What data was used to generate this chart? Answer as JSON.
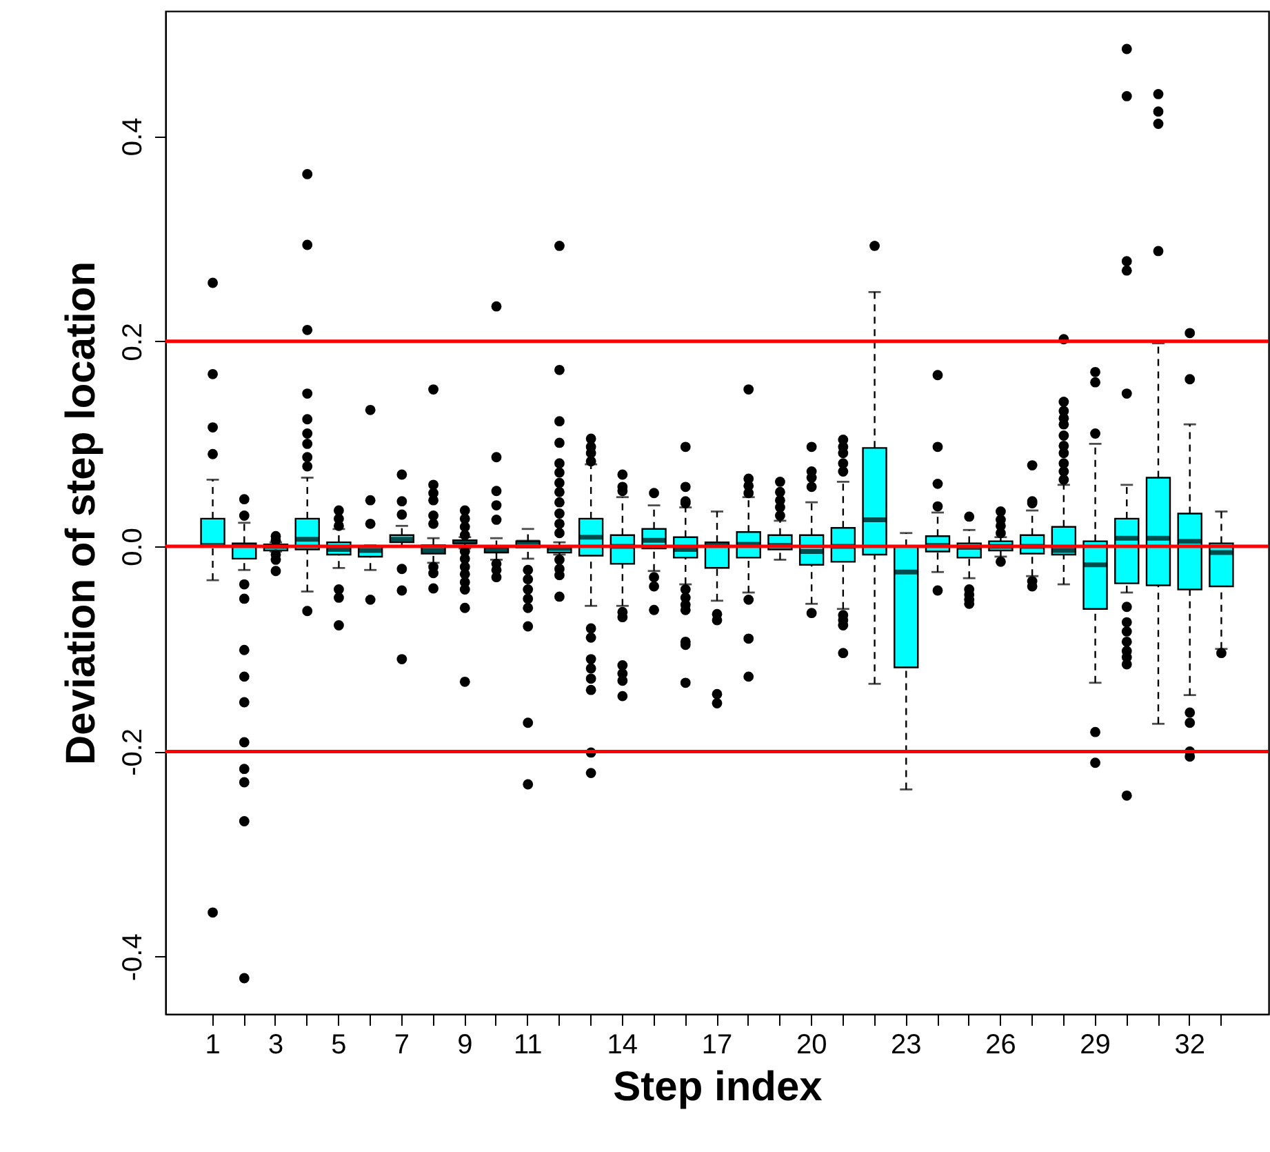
{
  "chart_data": {
    "type": "box",
    "xlabel": "Step index",
    "ylabel": "Deviation of step location",
    "categories": [
      "1",
      null,
      "3",
      null,
      "5",
      null,
      "7",
      null,
      "9",
      null,
      "11",
      null,
      null,
      "14",
      null,
      null,
      "17",
      null,
      null,
      "20",
      null,
      null,
      "23",
      null,
      null,
      "26",
      null,
      null,
      "29",
      null,
      null,
      "32",
      null
    ],
    "ylim": [
      -0.456,
      0.522
    ],
    "yticks": [
      -0.4,
      -0.2,
      {
        "value": 0,
        "label": "0.0"
      },
      0.2,
      0.4
    ],
    "grid": false,
    "marker": "circle",
    "ref_lines": [
      {
        "axis": "y",
        "value": 0.2,
        "color": "#ff0000"
      },
      {
        "axis": "y",
        "value": 0.0,
        "color": "#ff0000"
      },
      {
        "axis": "y",
        "value": -0.2,
        "color": "#ff0000"
      }
    ],
    "series": [
      {
        "color": "#00ffff",
        "boxes": [
          {
            "low": -0.033,
            "q1": 0.0,
            "median": 0.001,
            "q3": 0.027,
            "high": 0.065,
            "outliers": [
              0.257,
              0.168,
              0.116,
              0.09,
              -0.357
            ]
          },
          {
            "low": -0.023,
            "q1": -0.012,
            "median": 0.001,
            "q3": 0.003,
            "high": 0.023,
            "outliers": [
              0.046,
              0.03,
              -0.037,
              -0.051,
              -0.101,
              -0.127,
              -0.152,
              -0.191,
              -0.217,
              -0.23,
              -0.268,
              -0.421
            ]
          },
          {
            "low": -0.005,
            "q1": -0.004,
            "median": 0.0,
            "q3": 0.002,
            "high": 0.004,
            "outliers": [
              0.01,
              0.006,
              -0.008,
              -0.013,
              -0.024
            ]
          },
          {
            "low": -0.044,
            "q1": -0.003,
            "median": 0.007,
            "q3": 0.027,
            "high": 0.067,
            "outliers": [
              0.363,
              0.294,
              0.211,
              0.149,
              0.124,
              0.11,
              0.1,
              0.087,
              0.078,
              -0.063
            ]
          },
          {
            "low": -0.021,
            "q1": -0.008,
            "median": -0.003,
            "q3": 0.004,
            "high": 0.017,
            "outliers": [
              0.035,
              0.027,
              0.02,
              -0.042,
              -0.05,
              -0.077
            ]
          },
          {
            "low": -0.023,
            "q1": -0.01,
            "median": -0.004,
            "q3": 0.0,
            "high": 0.001,
            "outliers": [
              0.133,
              0.045,
              0.022,
              -0.052
            ]
          },
          {
            "low": 0.0,
            "q1": 0.004,
            "median": 0.007,
            "q3": 0.011,
            "high": 0.02,
            "outliers": [
              0.07,
              0.044,
              0.031,
              -0.022,
              -0.043,
              -0.11
            ]
          },
          {
            "low": -0.016,
            "q1": -0.007,
            "median": -0.004,
            "q3": 0.001,
            "high": 0.008,
            "outliers": [
              0.153,
              0.06,
              0.052,
              0.045,
              0.03,
              0.022,
              -0.02,
              -0.026,
              -0.041
            ]
          },
          {
            "low": -0.002,
            "q1": 0.003,
            "median": 0.004,
            "q3": 0.006,
            "high": 0.009,
            "outliers": [
              0.035,
              0.027,
              0.019,
              0.011,
              -0.005,
              -0.012,
              -0.02,
              -0.027,
              -0.035,
              -0.042,
              -0.06,
              -0.132
            ]
          },
          {
            "low": -0.013,
            "q1": -0.006,
            "median": -0.003,
            "q3": -0.001,
            "high": 0.008,
            "outliers": [
              0.234,
              0.087,
              0.054,
              0.04,
              0.026,
              -0.017,
              -0.023,
              -0.03
            ]
          },
          {
            "low": -0.012,
            "q1": -0.001,
            "median": 0.004,
            "q3": 0.005,
            "high": 0.017,
            "outliers": [
              -0.023,
              -0.032,
              -0.042,
              -0.051,
              -0.06,
              -0.078,
              -0.172,
              -0.232
            ]
          },
          {
            "low": -0.008,
            "q1": -0.006,
            "median": -0.002,
            "q3": 0.0,
            "high": 0.004,
            "outliers": [
              0.293,
              0.172,
              0.122,
              0.101,
              0.081,
              0.072,
              0.062,
              0.053,
              0.043,
              0.032,
              0.022,
              0.013,
              -0.013,
              -0.022,
              -0.028,
              -0.049
            ]
          },
          {
            "low": -0.058,
            "q1": -0.009,
            "median": 0.009,
            "q3": 0.027,
            "high": 0.08,
            "outliers": [
              0.105,
              0.097,
              0.091,
              0.083,
              -0.08,
              -0.089,
              -0.11,
              -0.119,
              -0.129,
              -0.14,
              -0.201,
              -0.221
            ]
          },
          {
            "low": -0.058,
            "q1": -0.017,
            "median": 0.0,
            "q3": 0.011,
            "high": 0.048,
            "outliers": [
              0.07,
              0.058,
              0.054,
              -0.064,
              -0.069,
              -0.116,
              -0.124,
              -0.131,
              -0.146
            ]
          },
          {
            "low": -0.024,
            "q1": -0.002,
            "median": 0.006,
            "q3": 0.017,
            "high": 0.04,
            "outliers": [
              0.052,
              -0.03,
              -0.039,
              -0.062
            ]
          },
          {
            "low": -0.037,
            "q1": -0.011,
            "median": -0.003,
            "q3": 0.009,
            "high": 0.038,
            "outliers": [
              0.097,
              0.058,
              0.044,
              0.042,
              -0.042,
              -0.05,
              -0.057,
              -0.062,
              -0.093,
              -0.096,
              -0.133
            ]
          },
          {
            "low": -0.053,
            "q1": -0.021,
            "median": 0.002,
            "q3": 0.004,
            "high": 0.034,
            "outliers": [
              -0.066,
              -0.072,
              -0.144,
              -0.153
            ]
          },
          {
            "low": -0.045,
            "q1": -0.011,
            "median": 0.002,
            "q3": 0.014,
            "high": 0.048,
            "outliers": [
              0.153,
              0.066,
              0.059,
              0.052,
              -0.052,
              -0.09,
              -0.127
            ]
          },
          {
            "low": -0.013,
            "q1": -0.003,
            "median": 0.001,
            "q3": 0.011,
            "high": 0.025,
            "outliers": [
              0.063,
              0.053,
              0.045,
              0.038,
              0.03
            ]
          },
          {
            "low": -0.056,
            "q1": -0.018,
            "median": -0.005,
            "q3": 0.011,
            "high": 0.043,
            "outliers": [
              0.097,
              0.073,
              0.067,
              0.058,
              -0.065
            ]
          },
          {
            "low": -0.061,
            "q1": -0.015,
            "median": 0.0,
            "q3": 0.018,
            "high": 0.063,
            "outliers": [
              0.104,
              0.097,
              0.091,
              0.081,
              0.073,
              -0.067,
              -0.072,
              -0.077,
              -0.104
            ]
          },
          {
            "low": -0.134,
            "q1": -0.008,
            "median": 0.026,
            "q3": 0.096,
            "high": 0.248,
            "outliers": [
              0.293
            ]
          },
          {
            "low": -0.237,
            "q1": -0.118,
            "median": -0.025,
            "q3": 0.0,
            "high": 0.013
          },
          {
            "low": -0.025,
            "q1": -0.005,
            "median": 0.001,
            "q3": 0.01,
            "high": 0.033,
            "outliers": [
              0.167,
              0.097,
              0.061,
              0.039,
              -0.043
            ]
          },
          {
            "low": -0.031,
            "q1": -0.011,
            "median": -0.001,
            "q3": 0.003,
            "high": 0.016,
            "outliers": [
              0.029,
              -0.042,
              -0.047,
              -0.052,
              -0.056
            ]
          },
          {
            "low": -0.01,
            "q1": -0.004,
            "median": 0.0,
            "q3": 0.005,
            "high": 0.009,
            "outliers": [
              0.034,
              0.026,
              0.02,
              0.013,
              -0.015
            ]
          },
          {
            "low": -0.029,
            "q1": -0.007,
            "median": 0.0,
            "q3": 0.011,
            "high": 0.035,
            "outliers": [
              0.079,
              0.044,
              0.042,
              -0.034,
              -0.039
            ]
          },
          {
            "low": -0.037,
            "q1": -0.008,
            "median": -0.004,
            "q3": 0.019,
            "high": 0.06,
            "outliers": [
              0.202,
              0.141,
              0.132,
              0.125,
              0.119,
              0.108,
              0.098,
              0.091,
              0.081,
              0.073,
              0.065
            ]
          },
          {
            "low": -0.133,
            "q1": -0.061,
            "median": -0.018,
            "q3": 0.005,
            "high": 0.1,
            "outliers": [
              0.17,
              0.16,
              0.11,
              -0.181,
              -0.211
            ]
          },
          {
            "low": -0.045,
            "q1": -0.036,
            "median": 0.008,
            "q3": 0.027,
            "high": 0.06,
            "outliers": [
              0.485,
              0.439,
              0.278,
              0.269,
              0.149,
              -0.059,
              -0.074,
              -0.083,
              -0.093,
              -0.102,
              -0.108,
              -0.115,
              -0.243
            ]
          },
          {
            "low": -0.173,
            "q1": -0.038,
            "median": 0.008,
            "q3": 0.067,
            "high": 0.198,
            "outliers": [
              0.441,
              0.424,
              0.412,
              0.288
            ]
          },
          {
            "low": -0.145,
            "q1": -0.042,
            "median": 0.005,
            "q3": 0.032,
            "high": 0.119,
            "outliers": [
              0.208,
              0.163,
              -0.162,
              -0.172,
              -0.2,
              -0.205
            ]
          },
          {
            "low": -0.1,
            "q1": -0.039,
            "median": -0.006,
            "q3": 0.003,
            "high": 0.034,
            "outliers": [
              -0.104
            ]
          }
        ]
      }
    ]
  }
}
